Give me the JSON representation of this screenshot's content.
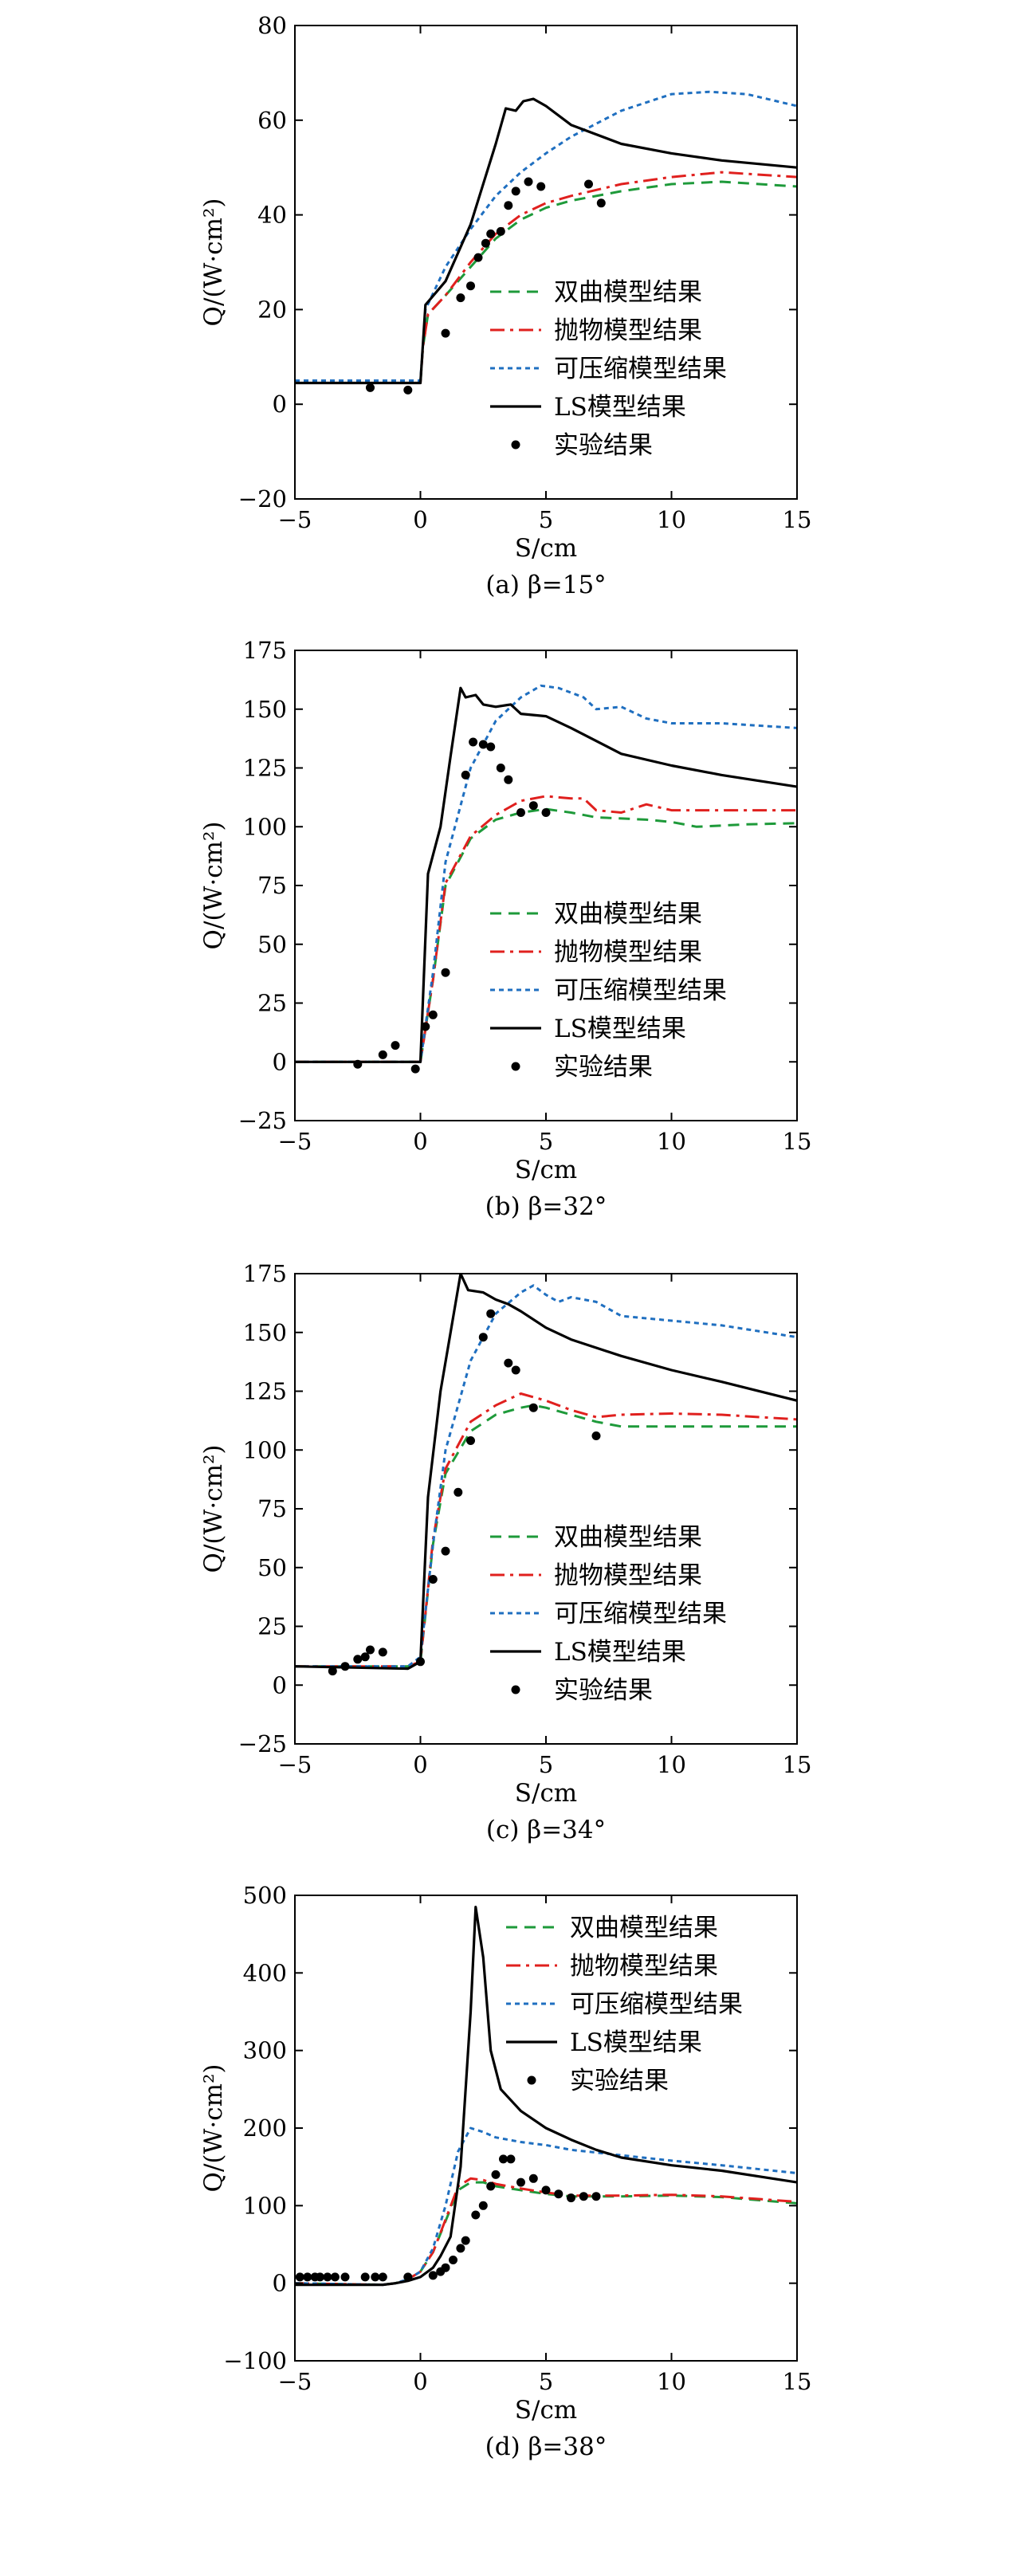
{
  "colors": {
    "hyperbolic": "#1e9a3a",
    "parabolic": "#e0201e",
    "compressible": "#1f6fc0",
    "ls": "#000000",
    "experiment": "#000000"
  },
  "chart_data": [
    {
      "type": "line",
      "caption": "(a) β=15°",
      "xlabel": "S/cm",
      "ylabel": "Q/(W·cm²)",
      "xlim": [
        -5,
        15
      ],
      "ylim": [
        -20,
        80
      ],
      "xticks": [
        -5,
        0,
        5,
        10,
        15
      ],
      "yticks": [
        -20,
        0,
        20,
        40,
        60,
        80
      ],
      "legend_position": "lower-right",
      "series": [
        {
          "name": "双曲模型结果",
          "style": "dashed",
          "color_key": "hyperbolic",
          "x": [
            -5,
            0,
            0.1,
            0.3,
            1,
            2,
            3,
            4,
            5,
            6,
            8,
            10,
            12,
            15
          ],
          "y": [
            4.5,
            4.5,
            12,
            19,
            23,
            29,
            35,
            39,
            41.5,
            43,
            45,
            46.5,
            47,
            46
          ]
        },
        {
          "name": "抛物模型结果",
          "style": "dashdot",
          "color_key": "parabolic",
          "x": [
            -5,
            0,
            0.1,
            0.3,
            1,
            2,
            3,
            4,
            5,
            6,
            8,
            10,
            12,
            15
          ],
          "y": [
            4.5,
            4.5,
            12,
            19,
            23,
            30,
            36,
            40,
            42.5,
            44,
            46.5,
            48,
            49,
            48
          ]
        },
        {
          "name": "可压缩模型结果",
          "style": "dotted",
          "color_key": "compressible",
          "x": [
            -5,
            0,
            0.2,
            1,
            2,
            3,
            4,
            5,
            6,
            8,
            10,
            11.5,
            13,
            15
          ],
          "y": [
            5,
            5,
            20,
            29,
            37,
            44,
            49,
            53,
            56.5,
            62,
            65.5,
            66,
            65.5,
            63
          ]
        },
        {
          "name": "LS模型结果",
          "style": "solid",
          "color_key": "ls",
          "x": [
            -5,
            0,
            0.2,
            1,
            2,
            3,
            3.4,
            3.8,
            4.1,
            4.5,
            5,
            6,
            8,
            10,
            12,
            15
          ],
          "y": [
            4.5,
            4.5,
            21,
            26,
            38,
            55,
            62.5,
            62,
            64,
            64.5,
            63,
            59,
            55,
            53,
            51.5,
            50
          ]
        },
        {
          "name": "实验结果",
          "style": "markers",
          "color_key": "experiment",
          "x": [
            -2,
            -0.5,
            1,
            1.6,
            2,
            2.3,
            2.6,
            2.8,
            3.2,
            3.5,
            3.8,
            4.3,
            4.8,
            6.7,
            7.2
          ],
          "y": [
            3.5,
            3,
            15,
            22.5,
            25,
            31,
            34,
            36,
            36.5,
            42,
            45,
            47,
            46,
            46.5,
            42.5
          ]
        }
      ]
    },
    {
      "type": "line",
      "caption": "(b) β=32°",
      "xlabel": "S/cm",
      "ylabel": "Q/(W·cm²)",
      "xlim": [
        -5,
        15
      ],
      "ylim": [
        -25,
        175
      ],
      "xticks": [
        -5,
        0,
        5,
        10,
        15
      ],
      "yticks": [
        -25,
        0,
        25,
        50,
        75,
        100,
        125,
        150,
        175
      ],
      "legend_position": "lower-right",
      "series": [
        {
          "name": "双曲模型结果",
          "style": "dashed",
          "color_key": "hyperbolic",
          "x": [
            -5,
            0,
            0.5,
            1,
            2,
            3,
            4,
            5,
            6,
            7,
            8,
            9,
            10,
            11,
            12,
            13,
            15
          ],
          "y": [
            0,
            0,
            35,
            75,
            95,
            103,
            106,
            107.5,
            106,
            104,
            103.5,
            103,
            102,
            100,
            100.5,
            101,
            101.5
          ]
        },
        {
          "name": "抛物模型结果",
          "style": "dashdot",
          "color_key": "parabolic",
          "x": [
            -5,
            0,
            0.5,
            1,
            2,
            3,
            4,
            5,
            6,
            6.5,
            7,
            8,
            9,
            10,
            12,
            15
          ],
          "y": [
            0,
            0,
            35,
            76,
            96,
            105,
            111,
            113,
            112,
            112,
            107,
            106,
            109.5,
            107,
            107,
            107
          ]
        },
        {
          "name": "可压缩模型结果",
          "style": "dotted",
          "color_key": "compressible",
          "x": [
            -5,
            0,
            0.5,
            1,
            2,
            3,
            4,
            4.8,
            5.5,
            6.5,
            7,
            8,
            9,
            10,
            12,
            15
          ],
          "y": [
            0,
            0,
            38,
            85,
            125,
            145,
            155,
            160,
            159,
            155,
            150,
            151,
            146,
            144,
            144,
            142
          ]
        },
        {
          "name": "LS模型结果",
          "style": "solid",
          "color_key": "ls",
          "x": [
            -5,
            0,
            0.3,
            0.8,
            1.2,
            1.6,
            1.8,
            2.2,
            2.5,
            3,
            3.6,
            4,
            5,
            6,
            8,
            10,
            12,
            15
          ],
          "y": [
            0,
            0,
            80,
            100,
            130,
            159,
            155,
            156,
            152,
            151,
            152,
            148,
            147,
            142,
            131,
            126,
            122,
            117
          ]
        },
        {
          "name": "实验结果",
          "style": "markers",
          "color_key": "experiment",
          "x": [
            -2.5,
            -1.5,
            -1,
            -0.2,
            0.2,
            0.5,
            1,
            1.8,
            2.1,
            2.5,
            2.8,
            3.2,
            3.5,
            4,
            4.5,
            5
          ],
          "y": [
            -1,
            3,
            7,
            -3,
            15,
            20,
            38,
            122,
            136,
            135,
            134,
            125,
            120,
            106,
            109,
            106
          ]
        }
      ]
    },
    {
      "type": "line",
      "caption": "(c) β=34°",
      "xlabel": "S/cm",
      "ylabel": "Q/(W·cm²)",
      "xlim": [
        -5,
        15
      ],
      "ylim": [
        -25,
        175
      ],
      "xticks": [
        -5,
        0,
        5,
        10,
        15
      ],
      "yticks": [
        -25,
        0,
        25,
        50,
        75,
        100,
        125,
        150,
        175
      ],
      "legend_position": "lower-right",
      "series": [
        {
          "name": "双曲模型结果",
          "style": "dashed",
          "color_key": "hyperbolic",
          "x": [
            -5,
            -0.5,
            0,
            0.5,
            1,
            2,
            3,
            4,
            4.5,
            5,
            6,
            7,
            8,
            10,
            12,
            15
          ],
          "y": [
            8,
            8,
            10,
            60,
            90,
            108,
            115,
            118,
            119,
            118,
            115,
            112,
            110,
            110,
            110,
            110
          ]
        },
        {
          "name": "抛物模型结果",
          "style": "dashdot",
          "color_key": "parabolic",
          "x": [
            -5,
            -0.5,
            0,
            0.5,
            1,
            2,
            3,
            4,
            5,
            6,
            7,
            8,
            10,
            12,
            15
          ],
          "y": [
            8,
            8,
            10,
            62,
            92,
            112,
            119,
            124,
            121,
            117,
            114,
            115,
            115.5,
            115,
            113
          ]
        },
        {
          "name": "可压缩模型结果",
          "style": "dotted",
          "color_key": "compressible",
          "x": [
            -5,
            -0.5,
            0,
            0.5,
            1,
            2,
            3,
            4,
            4.5,
            5,
            5.5,
            6,
            7,
            8,
            10,
            12,
            15
          ],
          "y": [
            8,
            8,
            12,
            60,
            100,
            138,
            158,
            167,
            170,
            166,
            163,
            165,
            163,
            157,
            155,
            153,
            148
          ]
        },
        {
          "name": "LS模型结果",
          "style": "solid",
          "color_key": "ls",
          "x": [
            -5,
            -0.5,
            0,
            0.3,
            0.8,
            1.2,
            1.6,
            1.9,
            2.5,
            3,
            3.5,
            4,
            5,
            6,
            8,
            10,
            12,
            15
          ],
          "y": [
            8,
            7,
            10,
            80,
            125,
            150,
            175,
            168,
            167,
            164,
            162,
            159,
            152,
            147,
            140,
            134,
            129,
            121
          ]
        },
        {
          "name": "实验结果",
          "style": "markers",
          "color_key": "experiment",
          "x": [
            -3.5,
            -3,
            -2.5,
            -2.2,
            -2,
            -1.5,
            0,
            0.5,
            1,
            1.5,
            2,
            2.5,
            2.8,
            3.5,
            3.8,
            4.5,
            7
          ],
          "y": [
            6,
            8,
            11,
            12,
            15,
            14,
            10,
            45,
            57,
            82,
            104,
            148,
            158,
            137,
            134,
            118,
            106
          ]
        }
      ]
    },
    {
      "type": "line",
      "caption": "(d) β=38°",
      "xlabel": "S/cm",
      "ylabel": "Q/(W·cm²)",
      "xlim": [
        -5,
        15
      ],
      "ylim": [
        -100,
        500
      ],
      "xticks": [
        -5,
        0,
        5,
        10,
        15
      ],
      "yticks": [
        -100,
        0,
        100,
        200,
        300,
        400,
        500
      ],
      "legend_position": "top-right",
      "series": [
        {
          "name": "双曲模型结果",
          "style": "dashed",
          "color_key": "hyperbolic",
          "x": [
            -5,
            -1.5,
            -1,
            -0.5,
            0,
            0.5,
            1,
            1.5,
            2,
            2.5,
            3,
            4,
            5,
            6,
            7,
            8,
            10,
            12,
            15
          ],
          "y": [
            0,
            -2,
            0,
            5,
            15,
            40,
            80,
            120,
            130,
            130,
            125,
            120,
            115,
            112,
            112,
            112,
            113,
            111,
            103
          ]
        },
        {
          "name": "抛物模型结果",
          "style": "dashdot",
          "color_key": "parabolic",
          "x": [
            -5,
            -1.5,
            -1,
            -0.5,
            0,
            0.5,
            1,
            1.5,
            2,
            2.5,
            3,
            4,
            5,
            6,
            7,
            8,
            10,
            12,
            15
          ],
          "y": [
            0,
            -2,
            0,
            5,
            15,
            40,
            82,
            125,
            135,
            133,
            128,
            122,
            117,
            113,
            113,
            113,
            114,
            112,
            105
          ]
        },
        {
          "name": "可压缩模型结果",
          "style": "dotted",
          "color_key": "compressible",
          "x": [
            -5,
            -1.5,
            -1,
            -0.5,
            0,
            0.5,
            1,
            1.5,
            2,
            2.5,
            3,
            4,
            5,
            6,
            8,
            10,
            12,
            15
          ],
          "y": [
            0,
            -2,
            0,
            5,
            15,
            45,
            100,
            170,
            200,
            195,
            188,
            182,
            178,
            172,
            165,
            158,
            152,
            142
          ]
        },
        {
          "name": "LS模型结果",
          "style": "solid",
          "color_key": "ls",
          "x": [
            -5,
            -1.5,
            -1,
            -0.5,
            0,
            0.5,
            0.8,
            1.2,
            1.6,
            2,
            2.2,
            2.5,
            2.8,
            3.2,
            4,
            5,
            6,
            7,
            8,
            10,
            12,
            15
          ],
          "y": [
            -2,
            -2,
            0,
            3,
            8,
            20,
            35,
            60,
            150,
            350,
            485,
            420,
            300,
            250,
            222,
            200,
            185,
            172,
            162,
            152,
            145,
            130
          ]
        },
        {
          "name": "实验结果",
          "style": "markers",
          "color_key": "experiment",
          "x": [
            -4.8,
            -4.5,
            -4.2,
            -4,
            -3.7,
            -3.4,
            -3,
            -2.2,
            -1.8,
            -1.5,
            -0.5,
            0.5,
            0.8,
            1,
            1.3,
            1.6,
            1.8,
            2.2,
            2.5,
            2.8,
            3,
            3.3,
            3.6,
            4,
            4.5,
            5,
            5.5,
            6,
            6.5,
            7
          ],
          "y": [
            8,
            8,
            8,
            8,
            8,
            8,
            8,
            8,
            8,
            8,
            8,
            10,
            15,
            20,
            30,
            45,
            55,
            88,
            100,
            125,
            140,
            160,
            160,
            130,
            135,
            120,
            115,
            110,
            112,
            112
          ]
        }
      ]
    }
  ]
}
